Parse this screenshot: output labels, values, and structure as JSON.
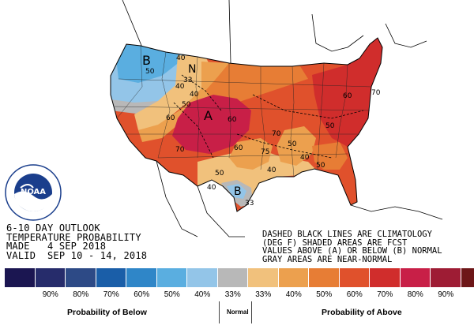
{
  "outlook": {
    "line1": "6-10 DAY OUTLOOK",
    "line2": "TEMPERATURE PROBABILITY",
    "line3": "MADE   4 SEP 2018",
    "line4": "VALID  SEP 10 - 14, 2018"
  },
  "notes": {
    "line1": "DASHED BLACK LINES ARE CLIMATOLOGY",
    "line2": "(DEG F) SHADED AREAS ARE FCST",
    "line3": "VALUES ABOVE (A) OR BELOW (B) NORMAL",
    "line4": "GRAY AREAS ARE NEAR-NORMAL"
  },
  "map_labels": {
    "b_northwest": "B",
    "n_label": "N",
    "a_central": "A",
    "b_texas": "B",
    "c1": "40",
    "c2": "50",
    "c3": "40",
    "c4": "33",
    "c5": "40",
    "c6": "50",
    "c7": "60",
    "c8": "70",
    "c9": "60",
    "c10": "60",
    "c11": "70",
    "c12": "75",
    "c13": "50",
    "c14": "40",
    "c15": "50",
    "c16": "40",
    "c17": "33",
    "c18": "60",
    "c19": "70",
    "c20": "50",
    "c21": "40",
    "c22": "50"
  },
  "legend": {
    "colors": [
      "#1b1651",
      "#262c6b",
      "#2d4a86",
      "#1a5ea8",
      "#2f86c8",
      "#5aaee0",
      "#93c5e8",
      "#b8b8b8",
      "#f1c17c",
      "#eca04e",
      "#e77d35",
      "#e0512c",
      "#d02d2c",
      "#c81f47",
      "#9e1c34",
      "#6d1618"
    ],
    "labels": [
      "90%",
      "80%",
      "70%",
      "60%",
      "50%",
      "40%",
      "33%",
      "33%",
      "40%",
      "50%",
      "60%",
      "70%",
      "80%",
      "90%"
    ],
    "below_caption": "Probability of Below",
    "normal_caption": "Normal",
    "above_caption": "Probability of Above"
  },
  "logo": {
    "text": "NOAA"
  }
}
